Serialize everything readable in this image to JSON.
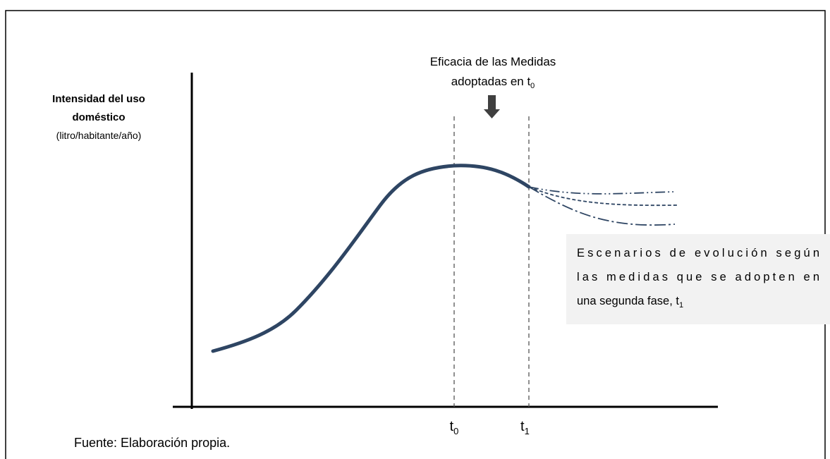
{
  "annotation": {
    "line1": "Eficacia de las Medidas",
    "line2": "adoptadas en t",
    "line2_sub": "0"
  },
  "y_axis_label": {
    "line1": "Intensidad del uso",
    "line2": "doméstico",
    "line3": "(litro/habitante/año)"
  },
  "scenario_box": {
    "line1": "Escenarios de evolución según",
    "line2": "las medidas que se adopten en",
    "line3": "una segunda fase, t",
    "line3_sub": "1"
  },
  "x_ticks": [
    {
      "base": "t",
      "sub": "0"
    },
    {
      "base": "t",
      "sub": "1"
    }
  ],
  "source": "Fuente: Elaboración propia."
}
